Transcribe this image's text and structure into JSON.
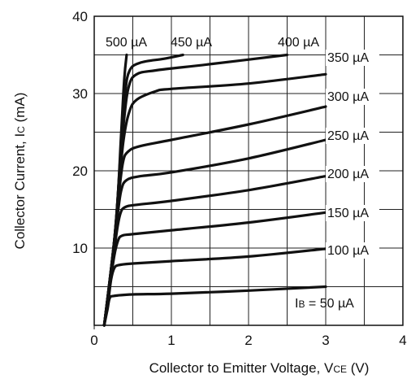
{
  "chart_data": {
    "type": "line",
    "xlabel": "Collector to Emitter Voltage, V",
    "xlabel_sub": "CE",
    "xlabel_unit": "(V)",
    "ylabel": "Collector Current, I",
    "ylabel_sub": "C",
    "ylabel_unit": "(mA)",
    "xlim": [
      0,
      4
    ],
    "ylim": [
      0,
      40
    ],
    "x_ticks": [
      {
        "v": 0,
        "label": "0"
      },
      {
        "v": 1,
        "label": "1"
      },
      {
        "v": 2,
        "label": "2"
      },
      {
        "v": 3,
        "label": "3"
      },
      {
        "v": 4,
        "label": "4"
      }
    ],
    "y_ticks": [
      {
        "v": 10,
        "label": "10"
      },
      {
        "v": 20,
        "label": "20"
      },
      {
        "v": 30,
        "label": "30"
      },
      {
        "v": 40,
        "label": "40"
      }
    ],
    "grid": true,
    "series": [
      {
        "name": "IB = 50 µA",
        "label_prefix": "I",
        "label_sub": "B",
        "label_rest": " = 50 µA",
        "points": [
          [
            0.13,
            0
          ],
          [
            0.17,
            2
          ],
          [
            0.2,
            3.5
          ],
          [
            0.25,
            3.8
          ],
          [
            0.5,
            4
          ],
          [
            1,
            4.1
          ],
          [
            2,
            4.5
          ],
          [
            3,
            5
          ]
        ]
      },
      {
        "name": "100 µA",
        "label_prefix": "100 µA",
        "label_sub": "",
        "label_rest": "",
        "points": [
          [
            0.13,
            0
          ],
          [
            0.18,
            3
          ],
          [
            0.22,
            6
          ],
          [
            0.26,
            7.4
          ],
          [
            0.32,
            7.8
          ],
          [
            0.5,
            8
          ],
          [
            1,
            8.3
          ],
          [
            2,
            8.9
          ],
          [
            3,
            9.9
          ]
        ]
      },
      {
        "name": "150 µA",
        "label_prefix": "150 µA",
        "label_sub": "",
        "label_rest": "",
        "points": [
          [
            0.13,
            0
          ],
          [
            0.2,
            5
          ],
          [
            0.26,
            9
          ],
          [
            0.31,
            11
          ],
          [
            0.36,
            11.6
          ],
          [
            0.5,
            11.8
          ],
          [
            1,
            12.3
          ],
          [
            2,
            13.3
          ],
          [
            3,
            14.6
          ]
        ]
      },
      {
        "name": "200 µA",
        "label_prefix": "200 µA",
        "label_sub": "",
        "label_rest": "",
        "points": [
          [
            0.13,
            0
          ],
          [
            0.22,
            6.5
          ],
          [
            0.29,
            12
          ],
          [
            0.34,
            14.5
          ],
          [
            0.4,
            15.3
          ],
          [
            0.55,
            15.6
          ],
          [
            1,
            16.1
          ],
          [
            2,
            17.5
          ],
          [
            3,
            19.3
          ]
        ]
      },
      {
        "name": "250 µA",
        "label_prefix": "250 µA",
        "label_sub": "",
        "label_rest": "",
        "points": [
          [
            0.13,
            0
          ],
          [
            0.23,
            8
          ],
          [
            0.3,
            14
          ],
          [
            0.35,
            17.5
          ],
          [
            0.42,
            18.8
          ],
          [
            0.6,
            19.3
          ],
          [
            1,
            19.8
          ],
          [
            2,
            21.6
          ],
          [
            3,
            24
          ]
        ]
      },
      {
        "name": "300 µA",
        "label_prefix": "300 µA",
        "label_sub": "",
        "label_rest": "",
        "points": [
          [
            0.13,
            0
          ],
          [
            0.24,
            9
          ],
          [
            0.31,
            16
          ],
          [
            0.37,
            21
          ],
          [
            0.44,
            22.5
          ],
          [
            0.6,
            23.2
          ],
          [
            1,
            24
          ],
          [
            2,
            26
          ],
          [
            3,
            28.3
          ]
        ]
      },
      {
        "name": "350 µA",
        "label_prefix": "350 µA",
        "label_sub": "",
        "label_rest": "",
        "points": [
          [
            0.13,
            0
          ],
          [
            0.25,
            10
          ],
          [
            0.32,
            18
          ],
          [
            0.38,
            24
          ],
          [
            0.45,
            27.5
          ],
          [
            0.55,
            29.2
          ],
          [
            0.8,
            30.3
          ],
          [
            1,
            30.6
          ],
          [
            2,
            31.3
          ],
          [
            3,
            32.5
          ]
        ]
      },
      {
        "name": "400 µA",
        "label_prefix": "400 µA",
        "label_sub": "",
        "label_rest": "",
        "points": [
          [
            0.13,
            0
          ],
          [
            0.26,
            11
          ],
          [
            0.33,
            20
          ],
          [
            0.39,
            27
          ],
          [
            0.45,
            31
          ],
          [
            0.55,
            32.5
          ],
          [
            0.8,
            33
          ],
          [
            1.5,
            33.8
          ],
          [
            2.5,
            35
          ]
        ]
      },
      {
        "name": "450 µA",
        "label_prefix": "450 µA",
        "label_sub": "",
        "label_rest": "",
        "points": [
          [
            0.13,
            0
          ],
          [
            0.27,
            12
          ],
          [
            0.34,
            22
          ],
          [
            0.4,
            30
          ],
          [
            0.46,
            33
          ],
          [
            0.6,
            34
          ],
          [
            0.9,
            34.5
          ],
          [
            1.15,
            35
          ]
        ]
      },
      {
        "name": "500 µA",
        "label_prefix": "500 µA",
        "label_sub": "",
        "label_rest": "",
        "points": [
          [
            0.13,
            0
          ],
          [
            0.28,
            13
          ],
          [
            0.35,
            25
          ],
          [
            0.39,
            32
          ],
          [
            0.42,
            35
          ]
        ]
      }
    ]
  }
}
